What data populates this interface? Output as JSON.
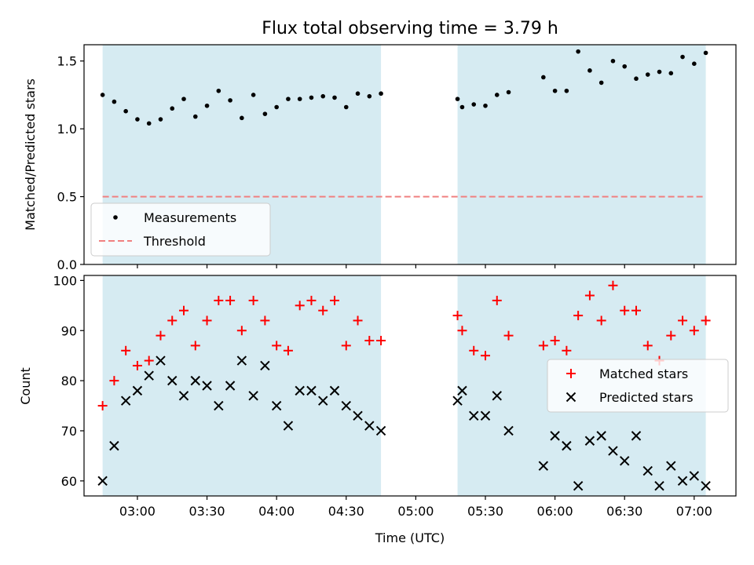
{
  "chart_data": {
    "title": "Flux total observing time = 3.79 h",
    "xlabel": "Time (UTC)",
    "x_ticks": [
      "03:00",
      "03:30",
      "04:00",
      "04:30",
      "05:00",
      "05:30",
      "06:00",
      "06:30",
      "07:00"
    ],
    "xlim": [
      "02:37",
      "07:18"
    ],
    "observing_spans": [
      {
        "start": "02:45",
        "end": "04:45"
      },
      {
        "start": "05:18",
        "end": "07:05"
      }
    ],
    "colors": {
      "span": "#add8e6",
      "measurements": "#000000",
      "threshold": "#f08080",
      "matched": "#ff0000",
      "predicted": "#000000"
    },
    "times": [
      "02:45",
      "02:50",
      "02:55",
      "03:00",
      "03:05",
      "03:10",
      "03:15",
      "03:20",
      "03:25",
      "03:30",
      "03:35",
      "03:40",
      "03:45",
      "03:50",
      "03:55",
      "04:00",
      "04:05",
      "04:10",
      "04:15",
      "04:20",
      "04:25",
      "04:30",
      "04:35",
      "04:40",
      "04:45",
      "05:18",
      "05:20",
      "05:25",
      "05:30",
      "05:35",
      "05:40",
      "05:55",
      "06:00",
      "06:05",
      "06:10",
      "06:15",
      "06:20",
      "06:25",
      "06:30",
      "06:35",
      "06:40",
      "06:45",
      "06:50",
      "06:55",
      "07:00",
      "07:05"
    ],
    "panels": [
      {
        "type": "scatter",
        "ylabel": "Matched/Predicted stars",
        "ylim": [
          0,
          1.62
        ],
        "y_ticks": [
          "0.0",
          "0.5",
          "1.0",
          "1.5"
        ],
        "y_tick_values": [
          0,
          0.5,
          1.0,
          1.5
        ],
        "legend_position": "lower-left",
        "series": [
          {
            "name": "Measurements",
            "marker": "dot",
            "values": [
              1.25,
              1.2,
              1.13,
              1.07,
              1.04,
              1.07,
              1.15,
              1.22,
              1.09,
              1.17,
              1.28,
              1.21,
              1.08,
              1.25,
              1.11,
              1.16,
              1.22,
              1.22,
              1.23,
              1.24,
              1.23,
              1.16,
              1.26,
              1.24,
              1.26,
              1.22,
              1.16,
              1.18,
              1.17,
              1.25,
              1.27,
              1.38,
              1.28,
              1.28,
              1.57,
              1.43,
              1.34,
              1.5,
              1.46,
              1.37,
              1.4,
              1.42,
              1.41,
              1.53,
              1.48,
              1.56
            ]
          },
          {
            "name": "Threshold",
            "marker": "dashed-line",
            "value": 0.5,
            "x_range": [
              "02:45",
              "07:05"
            ]
          }
        ]
      },
      {
        "type": "scatter",
        "ylabel": "Count",
        "ylim": [
          57,
          101
        ],
        "y_ticks": [
          "60",
          "70",
          "80",
          "90",
          "100"
        ],
        "y_tick_values": [
          60,
          70,
          80,
          90,
          100
        ],
        "legend_position": "center-right",
        "series": [
          {
            "name": "Matched stars",
            "marker": "plus",
            "values": [
              75,
              80,
              86,
              83,
              84,
              89,
              92,
              94,
              87,
              92,
              96,
              96,
              90,
              96,
              92,
              87,
              86,
              95,
              96,
              94,
              96,
              87,
              92,
              88,
              88,
              93,
              90,
              86,
              85,
              96,
              89,
              87,
              88,
              86,
              93,
              97,
              92,
              99,
              94,
              94,
              87,
              84,
              89,
              92,
              90,
              92
            ]
          },
          {
            "name": "Predicted stars",
            "marker": "x",
            "values": [
              60,
              67,
              76,
              78,
              81,
              84,
              80,
              77,
              80,
              79,
              75,
              79,
              84,
              77,
              83,
              75,
              71,
              78,
              78,
              76,
              78,
              75,
              73,
              71,
              70,
              76,
              78,
              73,
              73,
              77,
              70,
              63,
              69,
              67,
              59,
              68,
              69,
              66,
              64,
              69,
              62,
              59,
              63,
              60,
              61,
              59
            ]
          }
        ]
      }
    ]
  }
}
